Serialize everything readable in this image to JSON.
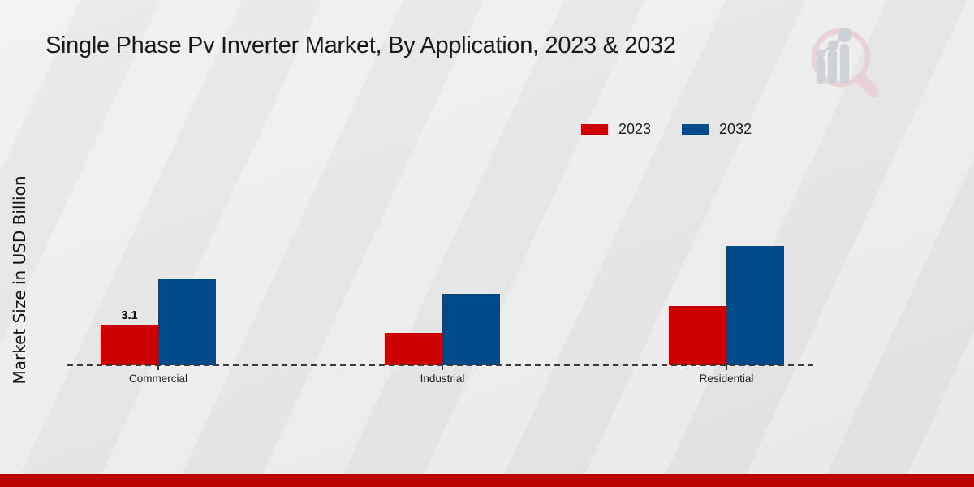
{
  "title": "Single Phase Pv Inverter Market, By Application, 2023 & 2032",
  "y_axis_label": "Market Size in USD Billion",
  "chart_data": {
    "type": "bar",
    "title": "Single Phase Pv Inverter Market, By Application, 2023 & 2032",
    "categories": [
      "Commercial",
      "Industrial",
      "Residential"
    ],
    "series": [
      {
        "name": "2023",
        "color": "#cc0000",
        "values": [
          3.1,
          2.5,
          4.6
        ],
        "data_labels": [
          "3.1",
          null,
          null
        ]
      },
      {
        "name": "2032",
        "color": "#004a8a",
        "values": [
          6.7,
          5.6,
          9.3
        ],
        "data_labels": [
          null,
          null,
          null
        ]
      }
    ],
    "ylabel": "Market Size in USD Billion",
    "xlabel": "",
    "ylim": [
      0,
      10
    ],
    "grid": false,
    "legend_position": "top-right",
    "x_axis_style": "dashed-baseline"
  },
  "colors": {
    "series_2023": "#cc0000",
    "series_2032": "#004a8a",
    "footer_band": "#bb0504",
    "axis_line": "#3b3b3b",
    "background": "#eaeaea",
    "title_text": "#1a1a1a",
    "logo_ring_pink": "#eacfd4",
    "logo_bars_gray": "#c9ccd4"
  },
  "watermark": {
    "icon": "magnifier-bar-chart-logo-icon"
  }
}
